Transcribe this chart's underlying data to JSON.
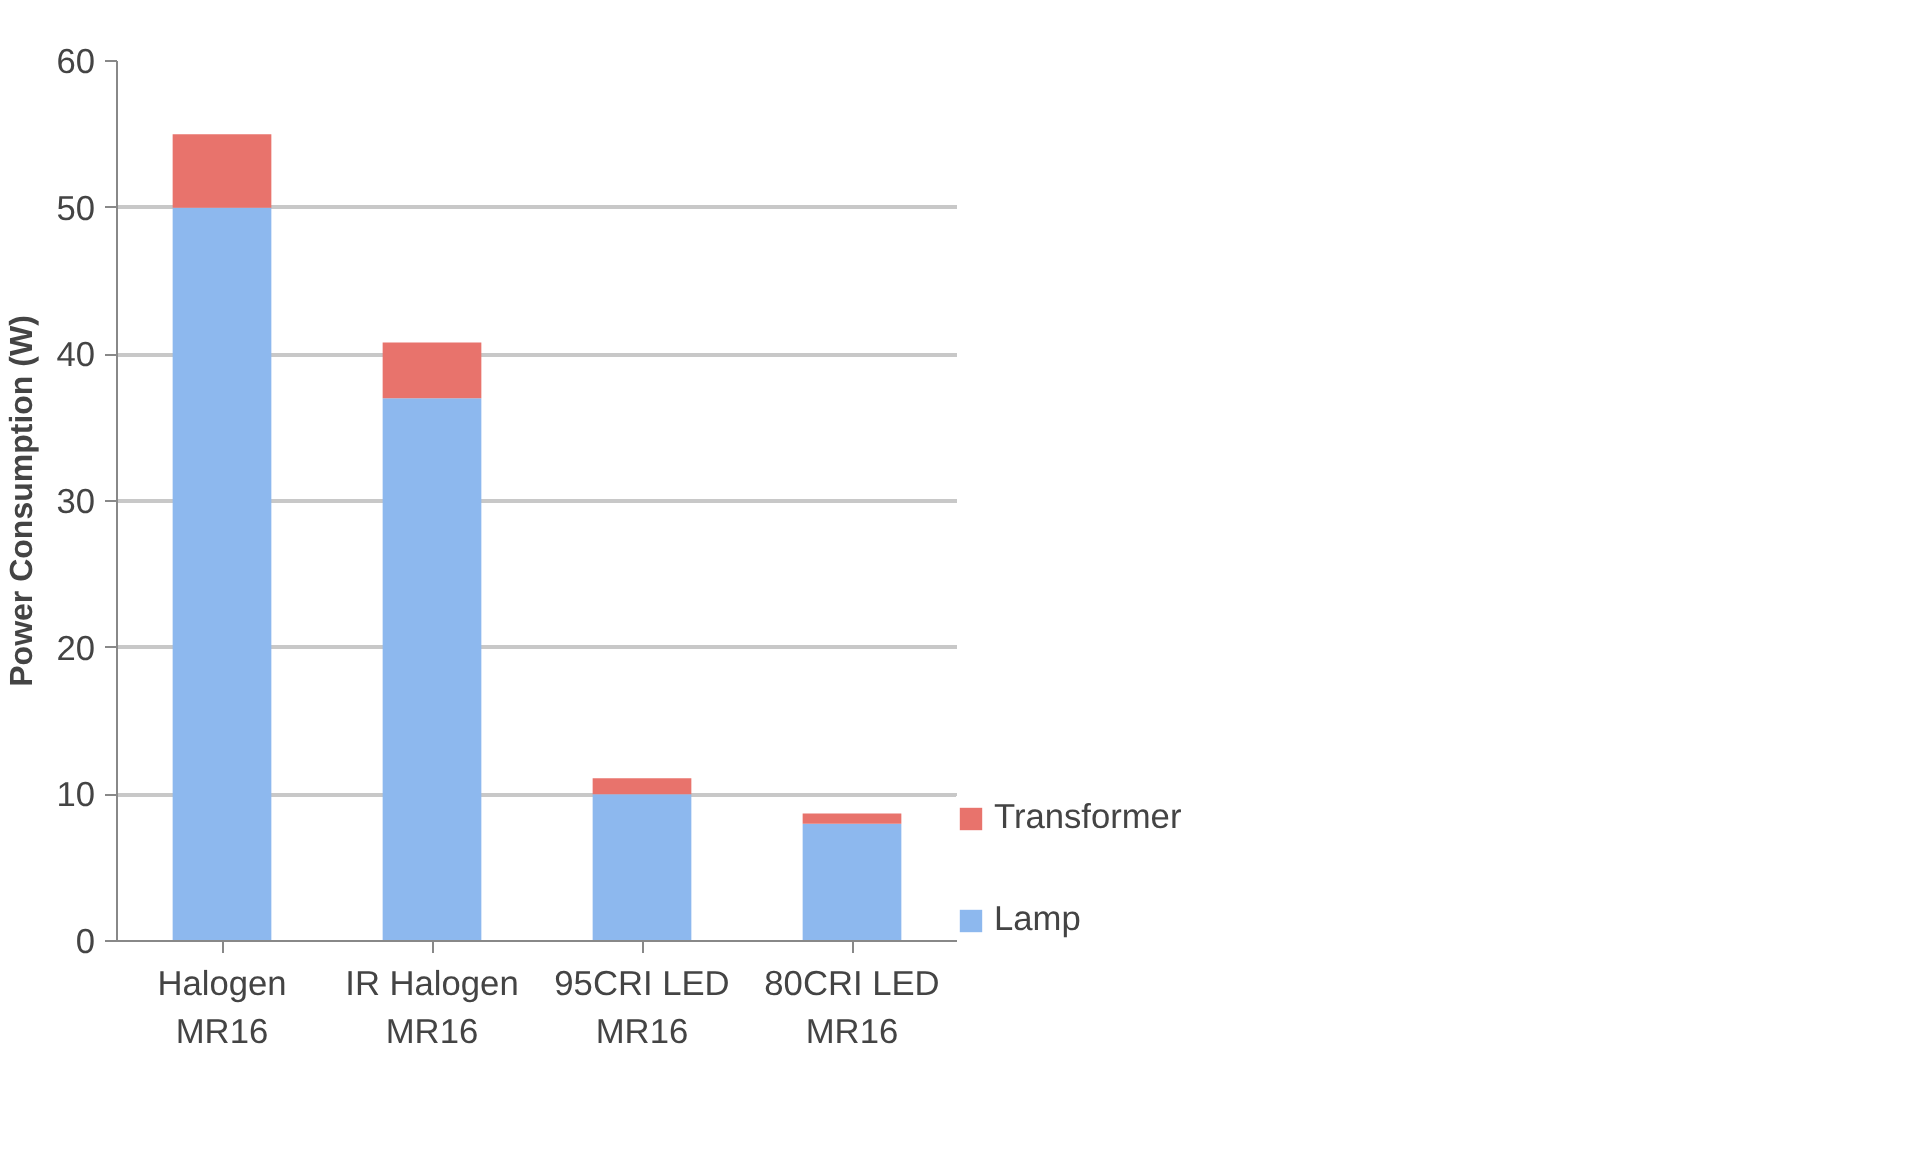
{
  "chart_data": {
    "type": "bar",
    "stacked": true,
    "ylabel": "Power Consumption (W)",
    "categories": [
      "Halogen\nMR16",
      "IR Halogen\nMR16",
      "95CRI LED\nMR16",
      "80CRI LED\nMR16"
    ],
    "series": [
      {
        "name": "Lamp",
        "color": "#8db8ee",
        "values": [
          50,
          37,
          10,
          8
        ]
      },
      {
        "name": "Transformer",
        "color": "#e8736c",
        "values": [
          5,
          3.8,
          1.1,
          0.7
        ]
      }
    ],
    "ylim": [
      0,
      60
    ],
    "yticks": [
      0,
      10,
      20,
      30,
      40,
      50,
      60
    ],
    "grid": "y",
    "legend": "right"
  }
}
